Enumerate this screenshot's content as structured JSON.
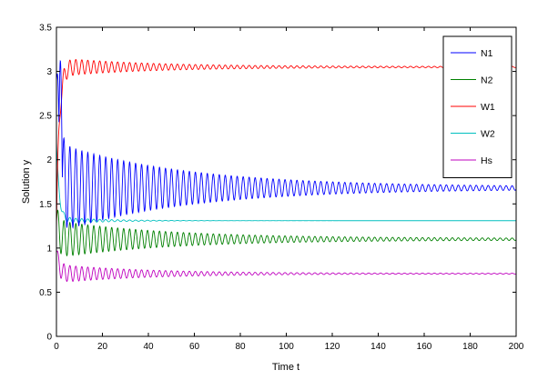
{
  "chart_data": {
    "type": "line",
    "title": "",
    "xlabel": "Time t",
    "ylabel": "Solution y",
    "xlim": [
      0,
      200
    ],
    "ylim": [
      0,
      3.5
    ],
    "xticks": [
      "0",
      "20",
      "40",
      "60",
      "80",
      "100",
      "120",
      "140",
      "160",
      "180",
      "200"
    ],
    "yticks": [
      "0",
      "0.5",
      "1",
      "1.5",
      "2",
      "2.5",
      "3",
      "3.5"
    ],
    "grid": false,
    "legend_position": "top-right",
    "series": [
      {
        "name": "N1",
        "color": "#0000ff",
        "steady": 1.68,
        "initial": 2.9,
        "amp0": 0.5,
        "decay": 0.018,
        "period": 2.6,
        "floor": 0.012,
        "spike": 3.12
      },
      {
        "name": "N2",
        "color": "#008000",
        "steady": 1.1,
        "initial": 1.3,
        "amp0": 0.2,
        "decay": 0.02,
        "period": 2.6,
        "floor": 0.01
      },
      {
        "name": "W1",
        "color": "#ff0000",
        "steady": 3.05,
        "initial": 1.2,
        "amp0": 0.1,
        "decay": 0.025,
        "period": 2.6,
        "floor": 0.006
      },
      {
        "name": "W2",
        "color": "#00bfbf",
        "steady": 1.31,
        "initial": 2.2,
        "amp0": 0.04,
        "decay": 0.05,
        "period": 2.6,
        "floor": 0.0
      },
      {
        "name": "Hs",
        "color": "#bf00bf",
        "steady": 0.71,
        "initial": 0.95,
        "amp0": 0.1,
        "decay": 0.025,
        "period": 2.6,
        "floor": 0.004
      }
    ]
  }
}
